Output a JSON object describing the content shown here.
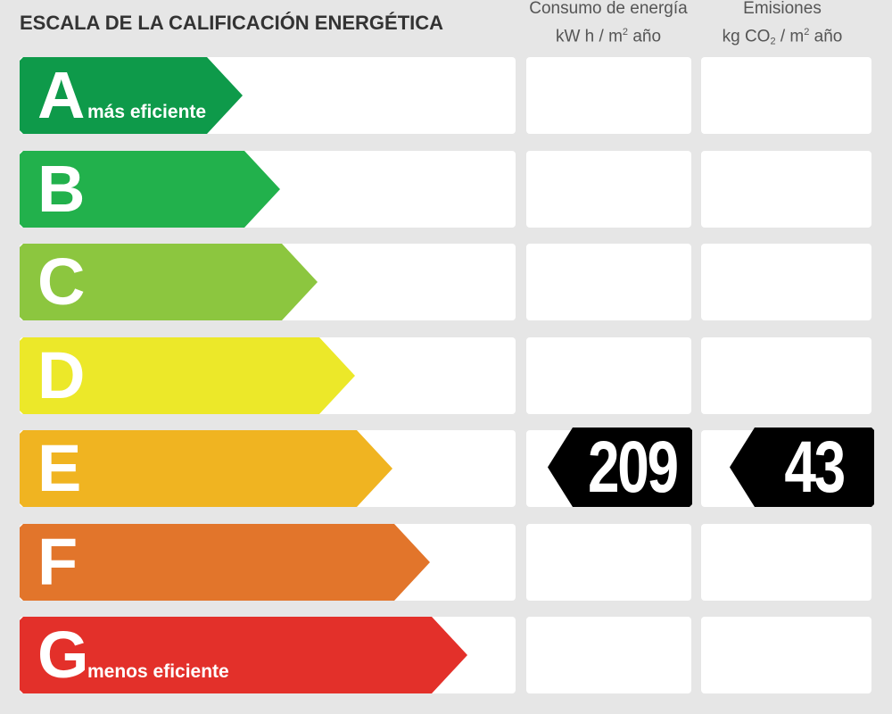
{
  "chart_data": {
    "type": "table",
    "title": "ESCALA DE LA CALIFICACIÓN ENERGÉTICA",
    "columns": [
      {
        "line1": "Consumo de energía",
        "line2_pre": "kW h  / m",
        "line2_sup": "2",
        "line2_post": " año"
      },
      {
        "line1": "Emisiones",
        "line2_pre": "kg CO",
        "line2_sub": "2",
        "line2_mid": "  / m",
        "line2_sup": "2",
        "line2_post": " año"
      }
    ],
    "categories": [
      "A",
      "B",
      "C",
      "D",
      "E",
      "F",
      "G"
    ],
    "bands": [
      {
        "letter": "A",
        "note": "más eficiente",
        "color": "#0e9a4a"
      },
      {
        "letter": "B",
        "note": "",
        "color": "#22b14c"
      },
      {
        "letter": "C",
        "note": "",
        "color": "#8cc63f"
      },
      {
        "letter": "D",
        "note": "",
        "color": "#ece829"
      },
      {
        "letter": "E",
        "note": "",
        "color": "#f0b421"
      },
      {
        "letter": "F",
        "note": "",
        "color": "#e2752b"
      },
      {
        "letter": "G",
        "note": "menos eficiente",
        "color": "#e3302a"
      }
    ],
    "series": [
      {
        "name": "Consumo de energía",
        "rating": "E",
        "value": 209
      },
      {
        "name": "Emisiones",
        "rating": "E",
        "value": 43
      }
    ],
    "marker_color": "#000000"
  }
}
